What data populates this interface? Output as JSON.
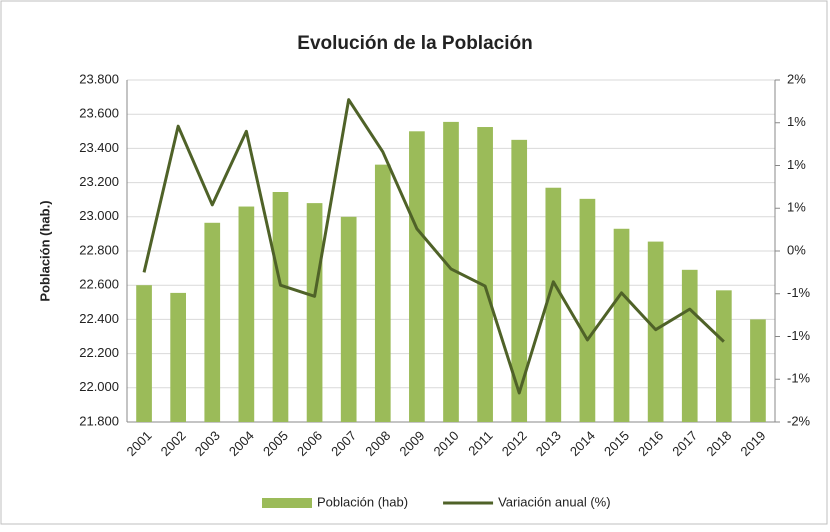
{
  "chart_data": {
    "type": "bar-line",
    "title": "Evolución de la Población",
    "y_label": "Población (hab.)",
    "categories": [
      "2001",
      "2002",
      "2003",
      "2004",
      "2005",
      "2006",
      "2007",
      "2008",
      "2009",
      "2010",
      "2011",
      "2012",
      "2013",
      "2014",
      "2015",
      "2016",
      "2017",
      "2018",
      "2019"
    ],
    "series": [
      {
        "name": "Población (hab)",
        "type": "bar",
        "color": "#9bbb59",
        "values": [
          22600,
          22555,
          22965,
          23060,
          23145,
          23080,
          23000,
          23305,
          23500,
          23555,
          23525,
          23450,
          23170,
          23105,
          22930,
          22855,
          22690,
          22570,
          22400
        ]
      },
      {
        "name": "Variación anual (%)",
        "type": "line",
        "axis": "y2",
        "color": "#4f6228",
        "values": [
          -0.25,
          1.46,
          0.54,
          1.4,
          -0.4,
          -0.53,
          1.77,
          1.16,
          0.26,
          -0.21,
          -0.41,
          -1.66,
          -0.36,
          -1.04,
          -0.49,
          -0.92,
          -0.68,
          -1.06,
          null
        ]
      }
    ],
    "ylim": [
      21800,
      23800
    ],
    "yticks": [
      {
        "value": 21800,
        "label": "21.800"
      },
      {
        "value": 22000,
        "label": "22.000"
      },
      {
        "value": 22200,
        "label": "22.200"
      },
      {
        "value": 22400,
        "label": "22.400"
      },
      {
        "value": 22600,
        "label": "22.600"
      },
      {
        "value": 22800,
        "label": "22.800"
      },
      {
        "value": 23000,
        "label": "23.000"
      },
      {
        "value": 23200,
        "label": "23.200"
      },
      {
        "value": 23400,
        "label": "23.400"
      },
      {
        "value": 23600,
        "label": "23.600"
      },
      {
        "value": 23800,
        "label": "23.800"
      }
    ],
    "y2lim": [
      -2,
      2
    ],
    "y2ticks": [
      {
        "value": -2,
        "label": "-2%"
      },
      {
        "value": -1.5,
        "label": "-1%"
      },
      {
        "value": -1,
        "label": "-1%"
      },
      {
        "value": -0.5,
        "label": "-1%"
      },
      {
        "value": 0,
        "label": "0%"
      },
      {
        "value": 0.5,
        "label": "1%"
      },
      {
        "value": 1,
        "label": "1%"
      },
      {
        "value": 1.5,
        "label": "1%"
      },
      {
        "value": 2,
        "label": "2%"
      }
    ],
    "grid": true,
    "legend": "bottom"
  }
}
